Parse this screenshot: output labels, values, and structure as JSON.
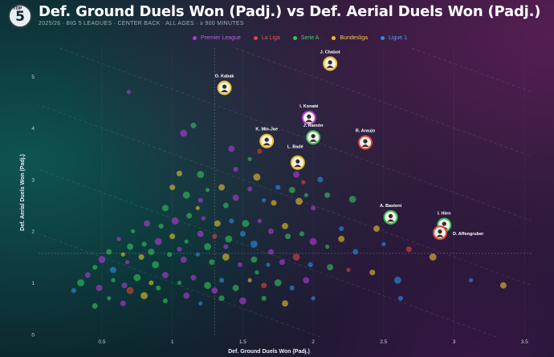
{
  "header": {
    "logo_text": "5",
    "logo_top": "TOP",
    "title": "Def. Ground Duels Won (Padj.) vs Def. Aerial Duels Won (Padj.)",
    "subtitle": "2025/26 · BIG 5 LEAGUES · CENTER BACK · ALL AGES · ≥ 900 MINUTES"
  },
  "colors": {
    "Premier League": "#b23ad6",
    "La Liga": "#e0443c",
    "Serie A": "#33c25a",
    "Bundesliga": "#e7c02a",
    "Ligue 1": "#2c8fe0"
  },
  "legend": [
    {
      "label": "Premier League",
      "color": "#b23ad6"
    },
    {
      "label": "La Liga",
      "color": "#e0443c"
    },
    {
      "label": "Serie A",
      "color": "#33c25a"
    },
    {
      "label": "Bundesliga",
      "color": "#e7c02a"
    },
    {
      "label": "Ligue 1",
      "color": "#2c8fe0"
    }
  ],
  "chart_data": {
    "type": "scatter",
    "xlabel": "Def. Ground Duels Won (Padj.)",
    "ylabel": "Def. Aerial Duels Won (Padj.)",
    "xlim": [
      0.05,
      3.55
    ],
    "ylim": [
      -0.05,
      5.55
    ],
    "xticks": [
      0.5,
      1,
      1.5,
      2,
      2.5,
      3,
      3.5
    ],
    "yticks": [
      0,
      1,
      2,
      3,
      4,
      5
    ],
    "average_x": 1.3,
    "average_y": 1.57,
    "labeled_players": [
      {
        "name": "J. Chabot",
        "x": 2.12,
        "y": 5.25,
        "league": "Bundesliga"
      },
      {
        "name": "O. Kabak",
        "x": 1.37,
        "y": 4.78,
        "league": "Bundesliga"
      },
      {
        "name": "I. Konaté",
        "x": 1.97,
        "y": 4.2,
        "league": "Premier League"
      },
      {
        "name": "K. Min-Jae",
        "x": 1.67,
        "y": 3.75,
        "league": "Bundesliga"
      },
      {
        "name": "J. Ramón",
        "x": 2.0,
        "y": 3.82,
        "league": "Serie A"
      },
      {
        "name": "R. Araujo",
        "x": 2.37,
        "y": 3.72,
        "league": "La Liga"
      },
      {
        "name": "L. Badé",
        "x": 1.89,
        "y": 3.33,
        "league": "Bundesliga"
      },
      {
        "name": "A. Bastoni",
        "x": 2.55,
        "y": 2.27,
        "league": "Serie A"
      },
      {
        "name": "I. Hien",
        "x": 2.93,
        "y": 2.12,
        "league": "Serie A"
      },
      {
        "name": "D. Affengruber",
        "x": 2.9,
        "y": 1.97,
        "league": "La Liga"
      }
    ],
    "points": [
      {
        "x": 0.69,
        "y": 4.7,
        "l": "Premier League"
      },
      {
        "x": 1.15,
        "y": 4.05,
        "l": "Serie A"
      },
      {
        "x": 1.08,
        "y": 3.9,
        "l": "Premier League"
      },
      {
        "x": 1.62,
        "y": 3.55,
        "l": "La Liga"
      },
      {
        "x": 1.42,
        "y": 3.6,
        "l": "Premier League"
      },
      {
        "x": 1.55,
        "y": 3.4,
        "l": "Serie A"
      },
      {
        "x": 1.05,
        "y": 3.12,
        "l": "Bundesliga"
      },
      {
        "x": 1.2,
        "y": 3.1,
        "l": "Serie A"
      },
      {
        "x": 1.45,
        "y": 3.2,
        "l": "Premier League"
      },
      {
        "x": 1.88,
        "y": 3.1,
        "l": "Premier League"
      },
      {
        "x": 1.93,
        "y": 2.95,
        "l": "La Liga"
      },
      {
        "x": 2.05,
        "y": 3.0,
        "l": "Ligue 1"
      },
      {
        "x": 1.6,
        "y": 3.05,
        "l": "Bundesliga"
      },
      {
        "x": 1.75,
        "y": 2.85,
        "l": "Ligue 1"
      },
      {
        "x": 1.85,
        "y": 2.8,
        "l": "Serie A"
      },
      {
        "x": 1.95,
        "y": 2.7,
        "l": "Serie A"
      },
      {
        "x": 2.1,
        "y": 2.7,
        "l": "Serie A"
      },
      {
        "x": 2.28,
        "y": 2.62,
        "l": "Serie A"
      },
      {
        "x": 1.55,
        "y": 2.82,
        "l": "Premier League"
      },
      {
        "x": 1.35,
        "y": 2.85,
        "l": "Bundesliga"
      },
      {
        "x": 1.25,
        "y": 2.8,
        "l": "Serie A"
      },
      {
        "x": 1.0,
        "y": 2.85,
        "l": "Bundesliga"
      },
      {
        "x": 1.1,
        "y": 2.7,
        "l": "Serie A"
      },
      {
        "x": 1.2,
        "y": 2.6,
        "l": "Premier League"
      },
      {
        "x": 1.45,
        "y": 2.65,
        "l": "Premier League"
      },
      {
        "x": 1.65,
        "y": 2.6,
        "l": "Ligue 1"
      },
      {
        "x": 1.72,
        "y": 2.55,
        "l": "Bundesliga"
      },
      {
        "x": 1.9,
        "y": 2.58,
        "l": "Bundesliga"
      },
      {
        "x": 2.0,
        "y": 2.45,
        "l": "Premier League"
      },
      {
        "x": 2.45,
        "y": 2.05,
        "l": "Bundesliga"
      },
      {
        "x": 2.5,
        "y": 1.75,
        "l": "Ligue 1"
      },
      {
        "x": 2.68,
        "y": 1.65,
        "l": "La Liga"
      },
      {
        "x": 2.85,
        "y": 1.5,
        "l": "Bundesliga"
      },
      {
        "x": 2.2,
        "y": 2.05,
        "l": "Ligue 1"
      },
      {
        "x": 2.2,
        "y": 1.85,
        "l": "Bundesliga"
      },
      {
        "x": 2.1,
        "y": 1.7,
        "l": "Serie A"
      },
      {
        "x": 2.3,
        "y": 1.6,
        "l": "Ligue 1"
      },
      {
        "x": 2.0,
        "y": 1.8,
        "l": "Premier League"
      },
      {
        "x": 1.92,
        "y": 1.95,
        "l": "Serie A"
      },
      {
        "x": 1.8,
        "y": 2.1,
        "l": "Bundesliga"
      },
      {
        "x": 1.62,
        "y": 2.2,
        "l": "Premier League"
      },
      {
        "x": 1.7,
        "y": 2.0,
        "l": "Premier League"
      },
      {
        "x": 1.52,
        "y": 2.15,
        "l": "Serie A"
      },
      {
        "x": 1.42,
        "y": 2.2,
        "l": "Ligue 1"
      },
      {
        "x": 1.32,
        "y": 2.15,
        "l": "Bundesliga"
      },
      {
        "x": 1.22,
        "y": 2.25,
        "l": "Premier League"
      },
      {
        "x": 1.12,
        "y": 2.3,
        "l": "Serie A"
      },
      {
        "x": 1.02,
        "y": 2.2,
        "l": "Premier League"
      },
      {
        "x": 0.92,
        "y": 2.1,
        "l": "Serie A"
      },
      {
        "x": 0.82,
        "y": 2.15,
        "l": "Premier League"
      },
      {
        "x": 0.72,
        "y": 2.0,
        "l": "Serie A"
      },
      {
        "x": 1.5,
        "y": 1.95,
        "l": "Ligue 1"
      },
      {
        "x": 1.4,
        "y": 1.85,
        "l": "Serie A"
      },
      {
        "x": 1.3,
        "y": 1.9,
        "l": "La Liga"
      },
      {
        "x": 1.2,
        "y": 1.95,
        "l": "Premier League"
      },
      {
        "x": 1.1,
        "y": 1.8,
        "l": "Serie A"
      },
      {
        "x": 1.0,
        "y": 1.9,
        "l": "Bundesliga"
      },
      {
        "x": 0.9,
        "y": 1.8,
        "l": "Premier League"
      },
      {
        "x": 0.8,
        "y": 1.75,
        "l": "Serie A"
      },
      {
        "x": 0.7,
        "y": 1.7,
        "l": "Serie A"
      },
      {
        "x": 0.62,
        "y": 1.85,
        "l": "Premier League"
      },
      {
        "x": 0.55,
        "y": 1.6,
        "l": "Serie A"
      },
      {
        "x": 0.5,
        "y": 1.45,
        "l": "Premier League"
      },
      {
        "x": 0.45,
        "y": 1.3,
        "l": "Serie A"
      },
      {
        "x": 0.58,
        "y": 1.25,
        "l": "Ligue 1"
      },
      {
        "x": 0.68,
        "y": 1.4,
        "l": "Premier League"
      },
      {
        "x": 0.78,
        "y": 1.5,
        "l": "Bundesliga"
      },
      {
        "x": 0.88,
        "y": 1.35,
        "l": "Serie A"
      },
      {
        "x": 0.98,
        "y": 1.55,
        "l": "Serie A"
      },
      {
        "x": 1.08,
        "y": 1.45,
        "l": "Premier League"
      },
      {
        "x": 1.18,
        "y": 1.55,
        "l": "Ligue 1"
      },
      {
        "x": 1.28,
        "y": 1.4,
        "l": "Serie A"
      },
      {
        "x": 1.38,
        "y": 1.5,
        "l": "Bundesliga"
      },
      {
        "x": 1.48,
        "y": 1.35,
        "l": "Premier League"
      },
      {
        "x": 1.58,
        "y": 1.45,
        "l": "Serie A"
      },
      {
        "x": 1.68,
        "y": 1.35,
        "l": "Ligue 1"
      },
      {
        "x": 1.78,
        "y": 1.4,
        "l": "Premier League"
      },
      {
        "x": 1.88,
        "y": 1.5,
        "l": "La Liga"
      },
      {
        "x": 1.98,
        "y": 1.35,
        "l": "Ligue 1"
      },
      {
        "x": 2.12,
        "y": 1.3,
        "l": "Serie A"
      },
      {
        "x": 2.25,
        "y": 1.25,
        "l": "La Liga"
      },
      {
        "x": 2.42,
        "y": 1.2,
        "l": "Bundesliga"
      },
      {
        "x": 2.6,
        "y": 1.05,
        "l": "Ligue 1"
      },
      {
        "x": 2.62,
        "y": 0.7,
        "l": "Ligue 1"
      },
      {
        "x": 3.35,
        "y": 0.95,
        "l": "Bundesliga"
      },
      {
        "x": 3.12,
        "y": 1.05,
        "l": "Ligue 1"
      },
      {
        "x": 0.4,
        "y": 1.15,
        "l": "Premier League"
      },
      {
        "x": 0.35,
        "y": 1.0,
        "l": "Serie A"
      },
      {
        "x": 0.3,
        "y": 0.85,
        "l": "Ligue 1"
      },
      {
        "x": 0.48,
        "y": 0.9,
        "l": "Premier League"
      },
      {
        "x": 0.58,
        "y": 1.05,
        "l": "Serie A"
      },
      {
        "x": 0.66,
        "y": 0.95,
        "l": "Premier League"
      },
      {
        "x": 0.75,
        "y": 1.1,
        "l": "Serie A"
      },
      {
        "x": 0.85,
        "y": 1.0,
        "l": "Bundesliga"
      },
      {
        "x": 0.95,
        "y": 1.15,
        "l": "Premier League"
      },
      {
        "x": 1.05,
        "y": 1.0,
        "l": "Serie A"
      },
      {
        "x": 1.15,
        "y": 1.1,
        "l": "Premier League"
      },
      {
        "x": 1.25,
        "y": 0.95,
        "l": "Serie A"
      },
      {
        "x": 1.35,
        "y": 1.05,
        "l": "Ligue 1"
      },
      {
        "x": 1.45,
        "y": 0.9,
        "l": "Serie A"
      },
      {
        "x": 1.55,
        "y": 1.05,
        "l": "Bundesliga"
      },
      {
        "x": 1.65,
        "y": 0.95,
        "l": "La Liga"
      },
      {
        "x": 1.75,
        "y": 1.0,
        "l": "Serie A"
      },
      {
        "x": 1.85,
        "y": 0.9,
        "l": "Ligue 1"
      },
      {
        "x": 1.95,
        "y": 1.05,
        "l": "Premier League"
      },
      {
        "x": 0.55,
        "y": 0.7,
        "l": "Serie A"
      },
      {
        "x": 0.65,
        "y": 0.6,
        "l": "Premier League"
      },
      {
        "x": 0.8,
        "y": 0.75,
        "l": "Bundesliga"
      },
      {
        "x": 0.95,
        "y": 0.65,
        "l": "Serie A"
      },
      {
        "x": 1.1,
        "y": 0.75,
        "l": "Premier League"
      },
      {
        "x": 1.2,
        "y": 0.6,
        "l": "Ligue 1"
      },
      {
        "x": 1.35,
        "y": 0.7,
        "l": "Serie A"
      },
      {
        "x": 1.5,
        "y": 0.65,
        "l": "Premier League"
      },
      {
        "x": 1.65,
        "y": 0.7,
        "l": "Serie A"
      },
      {
        "x": 1.8,
        "y": 0.6,
        "l": "Bundesliga"
      },
      {
        "x": 2.0,
        "y": 0.7,
        "l": "Ligue 1"
      },
      {
        "x": 0.45,
        "y": 0.55,
        "l": "Serie A"
      },
      {
        "x": 0.7,
        "y": 0.85,
        "l": "La Liga"
      },
      {
        "x": 0.9,
        "y": 0.9,
        "l": "Serie A"
      },
      {
        "x": 1.3,
        "y": 0.85,
        "l": "Premier League"
      },
      {
        "x": 1.6,
        "y": 1.2,
        "l": "Serie A"
      },
      {
        "x": 1.7,
        "y": 1.6,
        "l": "Premier League"
      },
      {
        "x": 1.25,
        "y": 1.7,
        "l": "Serie A"
      },
      {
        "x": 1.05,
        "y": 1.65,
        "l": "Premier League"
      },
      {
        "x": 0.85,
        "y": 1.6,
        "l": "Serie A"
      },
      {
        "x": 0.65,
        "y": 1.55,
        "l": "Bundesliga"
      },
      {
        "x": 1.82,
        "y": 1.9,
        "l": "Serie A"
      },
      {
        "x": 1.58,
        "y": 1.75,
        "l": "Ligue 1"
      },
      {
        "x": 1.38,
        "y": 1.7,
        "l": "Premier League"
      },
      {
        "x": 0.95,
        "y": 2.45,
        "l": "Serie A"
      },
      {
        "x": 1.18,
        "y": 2.45,
        "l": "Bundesliga"
      },
      {
        "x": 1.38,
        "y": 2.5,
        "l": "Serie A"
      }
    ]
  }
}
